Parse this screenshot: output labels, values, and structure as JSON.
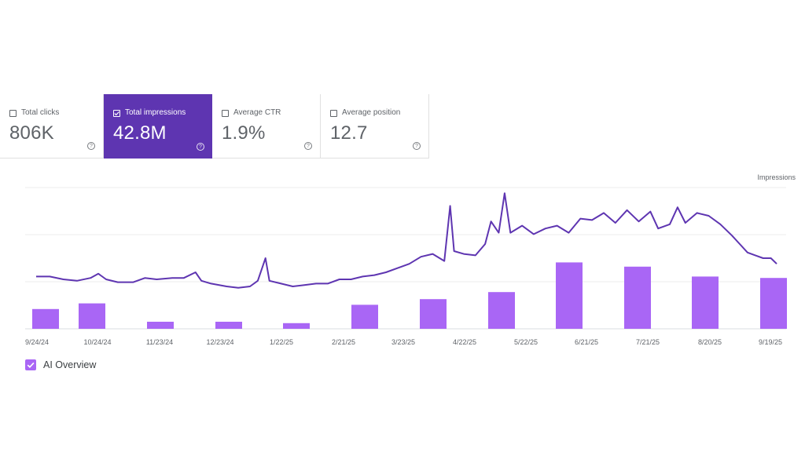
{
  "metrics": [
    {
      "label": "Total clicks",
      "value": "806K",
      "selected": false
    },
    {
      "label": "Total impressions",
      "value": "42.8M",
      "selected": true
    },
    {
      "label": "Average CTR",
      "value": "1.9%",
      "selected": false
    },
    {
      "label": "Average position",
      "value": "12.7",
      "selected": false
    }
  ],
  "help_glyph": "?",
  "colors": {
    "selected_card": "#5e35b1",
    "line": "#5e35b1",
    "bar": "#a966f5",
    "grid": "#eeeeee"
  },
  "legend": {
    "label": "AI Overview",
    "checked": true
  },
  "chart_data": {
    "type": "bar+line",
    "x_start": "9/24/24",
    "x_end": "9/24/25",
    "tick_labels": [
      "9/24/24",
      "10/24/24",
      "11/23/24",
      "12/23/24",
      "1/22/25",
      "2/21/25",
      "3/23/25",
      "4/22/25",
      "5/22/25",
      "6/21/25",
      "7/21/25",
      "8/20/25",
      "9/19/25"
    ],
    "ylabel": "Impressions",
    "grid": true,
    "series": [
      {
        "name": "",
        "type": "line",
        "color": "#5e35b1",
        "points": [
          [
            0,
            0.37
          ],
          [
            7,
            0.37
          ],
          [
            14,
            0.35
          ],
          [
            21,
            0.34
          ],
          [
            28,
            0.36
          ],
          [
            32,
            0.39
          ],
          [
            36,
            0.35
          ],
          [
            42,
            0.33
          ],
          [
            50,
            0.33
          ],
          [
            56,
            0.36
          ],
          [
            62,
            0.35
          ],
          [
            70,
            0.36
          ],
          [
            76,
            0.36
          ],
          [
            82,
            0.4
          ],
          [
            85,
            0.34
          ],
          [
            90,
            0.32
          ],
          [
            98,
            0.3
          ],
          [
            104,
            0.29
          ],
          [
            110,
            0.3
          ],
          [
            114,
            0.34
          ],
          [
            118,
            0.5
          ],
          [
            120,
            0.34
          ],
          [
            126,
            0.32
          ],
          [
            132,
            0.3
          ],
          [
            138,
            0.31
          ],
          [
            144,
            0.32
          ],
          [
            150,
            0.32
          ],
          [
            156,
            0.35
          ],
          [
            162,
            0.35
          ],
          [
            168,
            0.37
          ],
          [
            174,
            0.38
          ],
          [
            180,
            0.4
          ],
          [
            186,
            0.43
          ],
          [
            192,
            0.46
          ],
          [
            198,
            0.51
          ],
          [
            204,
            0.53
          ],
          [
            210,
            0.48
          ],
          [
            213,
            0.87
          ],
          [
            215,
            0.55
          ],
          [
            220,
            0.53
          ],
          [
            226,
            0.52
          ],
          [
            231,
            0.6
          ],
          [
            234,
            0.76
          ],
          [
            238,
            0.68
          ],
          [
            241,
            0.96
          ],
          [
            244,
            0.68
          ],
          [
            250,
            0.73
          ],
          [
            256,
            0.67
          ],
          [
            262,
            0.71
          ],
          [
            268,
            0.73
          ],
          [
            274,
            0.68
          ],
          [
            280,
            0.78
          ],
          [
            286,
            0.77
          ],
          [
            292,
            0.82
          ],
          [
            298,
            0.75
          ],
          [
            304,
            0.84
          ],
          [
            310,
            0.76
          ],
          [
            316,
            0.83
          ],
          [
            320,
            0.71
          ],
          [
            326,
            0.74
          ],
          [
            330,
            0.86
          ],
          [
            334,
            0.75
          ],
          [
            340,
            0.82
          ],
          [
            346,
            0.8
          ],
          [
            352,
            0.74
          ],
          [
            358,
            0.66
          ],
          [
            362,
            0.6
          ],
          [
            366,
            0.54
          ],
          [
            370,
            0.52
          ],
          [
            374,
            0.5
          ],
          [
            378,
            0.5
          ],
          [
            381,
            0.46
          ]
        ]
      },
      {
        "name": "AI Overview",
        "type": "bar",
        "color": "#a966f5",
        "points": [
          [
            3,
            0.14
          ],
          [
            30,
            0.18
          ],
          [
            62,
            0.05
          ],
          [
            92,
            0.05
          ],
          [
            123,
            0.04
          ],
          [
            153,
            0.17
          ],
          [
            183,
            0.21
          ],
          [
            213,
            0.26
          ],
          [
            244,
            0.47
          ],
          [
            274,
            0.44
          ],
          [
            304,
            0.37
          ],
          [
            334,
            0.36
          ]
        ]
      }
    ],
    "ylim": [
      0,
      1
    ]
  }
}
